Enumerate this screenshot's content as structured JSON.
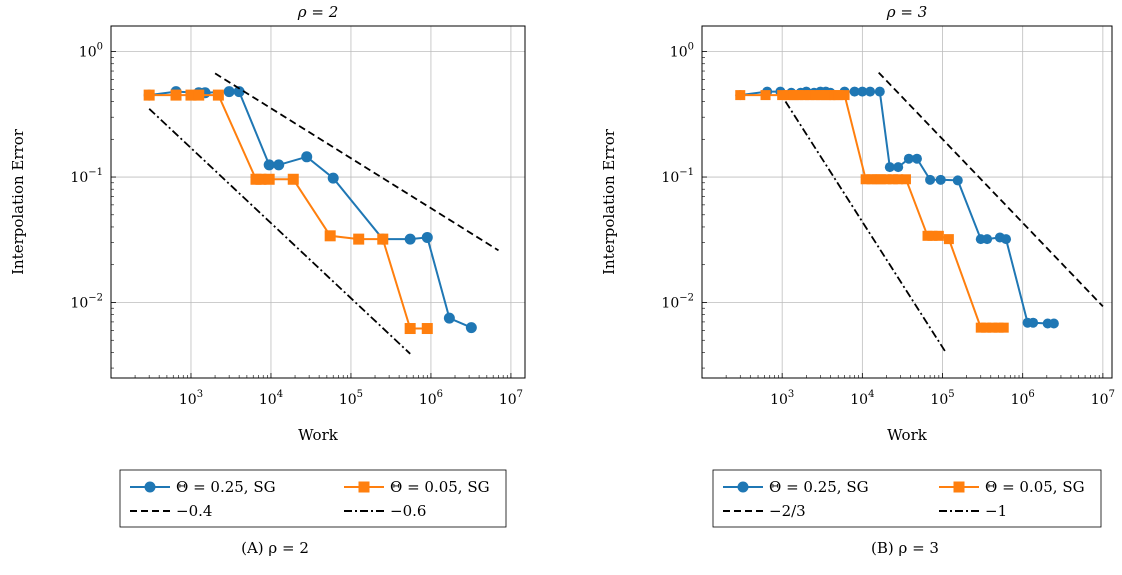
{
  "chart_data": [
    {
      "type": "line",
      "title": "ρ = 2",
      "xlabel": "Work",
      "ylabel": "Interpolation Error",
      "x_scale": "log",
      "y_scale": "log",
      "xlim": [
        100,
        15000000
      ],
      "ylim": [
        0.0025,
        1.6
      ],
      "grid": true,
      "legend_position": "bottom-outside",
      "x_ticks": [
        {
          "value": 1000,
          "base": "10",
          "exp": "3"
        },
        {
          "value": 10000,
          "base": "10",
          "exp": "4"
        },
        {
          "value": 100000,
          "base": "10",
          "exp": "5"
        },
        {
          "value": 1000000,
          "base": "10",
          "exp": "6"
        },
        {
          "value": 10000000,
          "base": "10",
          "exp": "7"
        }
      ],
      "y_ticks": [
        {
          "value": 1,
          "base": "10",
          "exp": "0"
        },
        {
          "value": 0.1,
          "base": "10",
          "exp": "−1"
        },
        {
          "value": 0.01,
          "base": "10",
          "exp": "−2"
        }
      ],
      "series": [
        {
          "name": "Θ = 0.25, SG",
          "color": "#1f77b4",
          "marker": "circle",
          "style": "solid",
          "x": [
            300,
            650,
            1250,
            1500,
            3000,
            4000,
            9500,
            12500,
            28000,
            60000,
            250000,
            550000,
            900000,
            1700000,
            3200000
          ],
          "y": [
            0.45,
            0.48,
            0.47,
            0.47,
            0.48,
            0.48,
            0.125,
            0.125,
            0.145,
            0.098,
            0.032,
            0.032,
            0.033,
            0.0075,
            0.0063
          ]
        },
        {
          "name": "Θ = 0.05, SG",
          "color": "#ff7f0e",
          "marker": "square",
          "style": "solid",
          "x": [
            300,
            650,
            1000,
            1250,
            2200,
            6500,
            7500,
            9500,
            19000,
            55000,
            125000,
            250000,
            550000,
            900000
          ],
          "y": [
            0.45,
            0.45,
            0.45,
            0.45,
            0.45,
            0.096,
            0.096,
            0.096,
            0.096,
            0.034,
            0.032,
            0.032,
            0.0062,
            0.0062
          ]
        },
        {
          "name": "−0.4",
          "color": "#000000",
          "marker": "none",
          "style": "dashed",
          "x": [
            2000,
            7000000
          ],
          "y": [
            0.67,
            0.026
          ]
        },
        {
          "name": "−0.6",
          "color": "#000000",
          "marker": "none",
          "style": "dashdot",
          "x": [
            300,
            550000
          ],
          "y": [
            0.35,
            0.0039
          ]
        }
      ]
    },
    {
      "type": "line",
      "title": "ρ = 3",
      "xlabel": "Work",
      "ylabel": "Interpolation Error",
      "x_scale": "log",
      "y_scale": "log",
      "xlim": [
        100,
        13000000
      ],
      "ylim": [
        0.0025,
        1.6
      ],
      "grid": true,
      "legend_position": "bottom-outside",
      "x_ticks": [
        {
          "value": 1000,
          "base": "10",
          "exp": "3"
        },
        {
          "value": 10000,
          "base": "10",
          "exp": "4"
        },
        {
          "value": 100000,
          "base": "10",
          "exp": "5"
        },
        {
          "value": 1000000,
          "base": "10",
          "exp": "6"
        },
        {
          "value": 10000000,
          "base": "10",
          "exp": "7"
        }
      ],
      "y_ticks": [
        {
          "value": 1,
          "base": "10",
          "exp": "0"
        },
        {
          "value": 0.1,
          "base": "10",
          "exp": "−1"
        },
        {
          "value": 0.01,
          "base": "10",
          "exp": "−2"
        }
      ],
      "series": [
        {
          "name": "Θ = 0.25, SG",
          "color": "#1f77b4",
          "marker": "circle",
          "style": "solid",
          "x": [
            300,
            650,
            950,
            1300,
            1700,
            2000,
            2500,
            3000,
            3500,
            4000,
            6000,
            8000,
            10000,
            12500,
            16500,
            22000,
            28000,
            38000,
            48000,
            70000,
            95000,
            155000,
            300000,
            360000,
            520000,
            620000,
            1150000,
            1350000,
            2050000,
            2450000
          ],
          "y": [
            0.45,
            0.48,
            0.48,
            0.47,
            0.47,
            0.48,
            0.47,
            0.48,
            0.48,
            0.47,
            0.48,
            0.48,
            0.48,
            0.48,
            0.48,
            0.12,
            0.12,
            0.14,
            0.14,
            0.095,
            0.095,
            0.094,
            0.032,
            0.032,
            0.033,
            0.032,
            0.0069,
            0.0069,
            0.0068,
            0.0068
          ],
          "dense": true
        },
        {
          "name": "Θ = 0.05, SG",
          "color": "#ff7f0e",
          "marker": "square",
          "style": "solid",
          "x": [
            300,
            620,
            1000,
            1200,
            1400,
            1600,
            1900,
            2200,
            2600,
            3000,
            3500,
            4000,
            4500,
            5000,
            6000,
            11000,
            13000,
            15000,
            17000,
            20000,
            24000,
            28000,
            35000,
            65000,
            75000,
            90000,
            120000,
            300000,
            350000,
            420000,
            500000,
            580000
          ],
          "y": [
            0.45,
            0.45,
            0.45,
            0.45,
            0.45,
            0.45,
            0.45,
            0.45,
            0.45,
            0.45,
            0.45,
            0.45,
            0.45,
            0.45,
            0.45,
            0.096,
            0.096,
            0.096,
            0.096,
            0.096,
            0.096,
            0.096,
            0.096,
            0.034,
            0.034,
            0.034,
            0.032,
            0.0063,
            0.0063,
            0.0063,
            0.0063,
            0.0063
          ],
          "dense": true
        },
        {
          "name": "−2/3",
          "color": "#000000",
          "marker": "none",
          "style": "dashed",
          "x": [
            16000,
            10000000
          ],
          "y": [
            0.68,
            0.0093
          ]
        },
        {
          "name": "−1",
          "color": "#000000",
          "marker": "none",
          "style": "dashdot",
          "x": [
            1100,
            110000
          ],
          "y": [
            0.4,
            0.004
          ]
        }
      ]
    }
  ],
  "captions": [
    "(A) ρ = 2",
    "(B) ρ = 3"
  ]
}
